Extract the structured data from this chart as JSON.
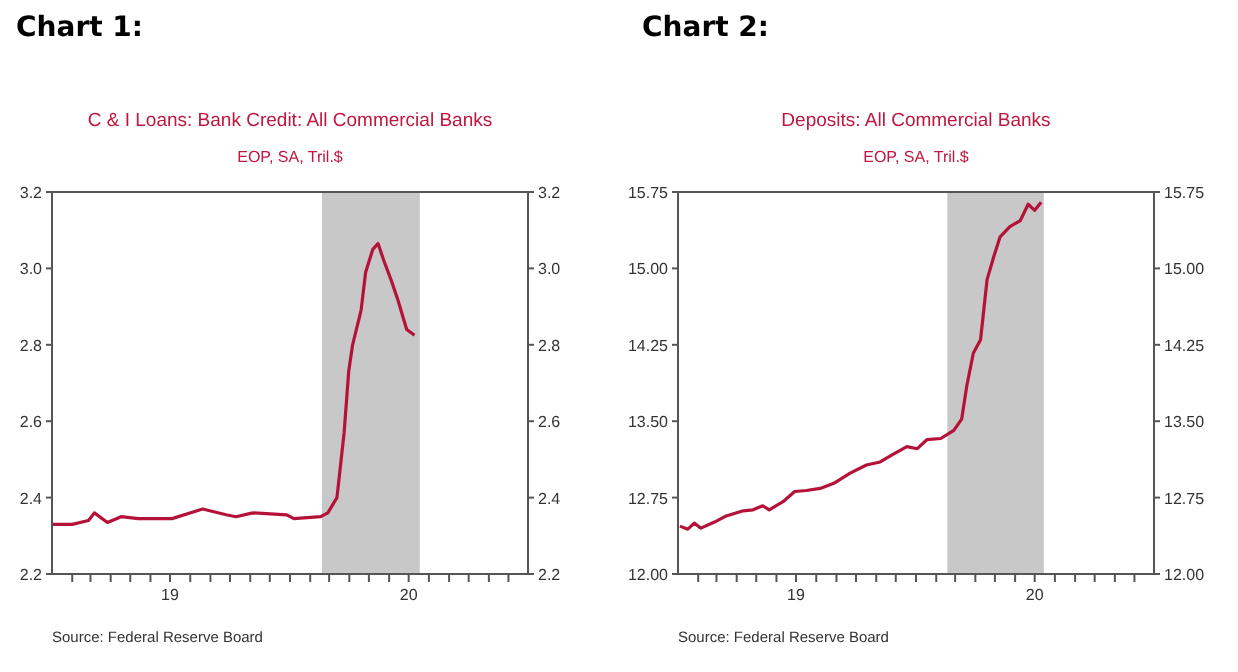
{
  "chart_data": [
    {
      "type": "line",
      "title": "C & I Loans: Bank Credit: All Commercial Banks",
      "subtitle": "EOP, SA, Tril.$",
      "annotations": [
        "Chart 1:",
        "Source:  Federal Reserve Board"
      ],
      "x": [
        "2019-01-01",
        "2019-02-01",
        "2019-02-26",
        "2019-03-07",
        "2019-03-27",
        "2019-04-17",
        "2019-05-13",
        "2019-07-04",
        "2019-08-20",
        "2019-09-25",
        "2019-10-10",
        "2019-11-05",
        "2019-12-27",
        "2020-01-07",
        "2020-02-17",
        "2020-02-28",
        "2020-03-13",
        "2020-03-24",
        "2020-03-31",
        "2020-04-06",
        "2020-04-19",
        "2020-04-26",
        "2020-05-07",
        "2020-05-15",
        "2020-05-24",
        "2020-06-04",
        "2020-06-14",
        "2020-06-28",
        "2020-07-10"
      ],
      "series": [
        {
          "color": "#b5123a",
          "values": [
            2.33,
            2.33,
            2.34,
            2.36,
            2.335,
            2.35,
            2.345,
            2.345,
            2.37,
            2.355,
            2.35,
            2.36,
            2.355,
            2.345,
            2.35,
            2.36,
            2.4,
            2.57,
            2.73,
            2.8,
            2.89,
            2.99,
            3.05,
            3.065,
            3.02,
            2.97,
            2.92,
            2.84,
            2.825
          ]
        }
      ],
      "bands": [
        {
          "axis": "x",
          "from": "2020-02-19",
          "to": "2020-07-18",
          "color": "#c8c8c8"
        }
      ],
      "xlim": [
        "2019-01-01",
        "2020-12-31"
      ],
      "xticks": [
        {
          "value": "2019-02-01",
          "label": null
        },
        {
          "value": "2019-03-01",
          "label": null
        },
        {
          "value": "2019-04-01",
          "label": null
        },
        {
          "value": "2019-05-01",
          "label": null
        },
        {
          "value": "2019-06-01",
          "label": null
        },
        {
          "value": "2019-07-01",
          "label": "19"
        },
        {
          "value": "2019-08-01",
          "label": null
        },
        {
          "value": "2019-09-01",
          "label": null
        },
        {
          "value": "2019-10-01",
          "label": null
        },
        {
          "value": "2019-11-01",
          "label": null
        },
        {
          "value": "2019-12-01",
          "label": null
        },
        {
          "value": "2020-01-01",
          "label": null
        },
        {
          "value": "2020-02-01",
          "label": null
        },
        {
          "value": "2020-03-01",
          "label": null
        },
        {
          "value": "2020-04-01",
          "label": null
        },
        {
          "value": "2020-05-01",
          "label": null
        },
        {
          "value": "2020-06-01",
          "label": null
        },
        {
          "value": "2020-07-01",
          "label": "20"
        },
        {
          "value": "2020-08-01",
          "label": null
        },
        {
          "value": "2020-09-01",
          "label": null
        },
        {
          "value": "2020-10-01",
          "label": null
        },
        {
          "value": "2020-11-01",
          "label": null
        },
        {
          "value": "2020-12-01",
          "label": null
        }
      ],
      "ylim": [
        2.2,
        3.2
      ],
      "yticks": [
        {
          "value": 2.2,
          "label": "2.2"
        },
        {
          "value": 2.4,
          "label": "2.4"
        },
        {
          "value": 2.6,
          "label": "2.6"
        },
        {
          "value": 2.8,
          "label": "2.8"
        },
        {
          "value": 3,
          "label": "3.0"
        },
        {
          "value": 3.2,
          "label": "3.2"
        }
      ],
      "y2lim": [
        2.2,
        3.2
      ],
      "y2ticks": [
        {
          "value": 2.2,
          "label": "2.2"
        },
        {
          "value": 2.4,
          "label": "2.4"
        },
        {
          "value": 2.6,
          "label": "2.6"
        },
        {
          "value": 2.8,
          "label": "2.8"
        },
        {
          "value": 3,
          "label": "3.0"
        },
        {
          "value": 3.2,
          "label": "3.2"
        }
      ],
      "grid": false
    },
    {
      "type": "line",
      "title": "Deposits: All Commercial Banks",
      "subtitle": "EOP, SA, Tril.$",
      "annotations": [
        "Chart 2:",
        "Source:  Federal Reserve Board"
      ],
      "x": [
        "2019-01-04",
        "2019-01-16",
        "2019-01-26",
        "2019-02-05",
        "2019-02-26",
        "2019-03-16",
        "2019-04-11",
        "2019-04-26",
        "2019-05-11",
        "2019-05-21",
        "2019-06-11",
        "2019-06-29",
        "2019-07-17",
        "2019-08-07",
        "2019-08-28",
        "2019-09-22",
        "2019-10-17",
        "2019-11-07",
        "2019-11-28",
        "2019-12-18",
        "2020-01-03",
        "2020-01-18",
        "2020-02-08",
        "2020-02-28",
        "2020-03-11",
        "2020-03-19",
        "2020-03-29",
        "2020-04-09",
        "2020-04-19",
        "2020-04-29",
        "2020-05-09",
        "2020-05-24",
        "2020-06-09",
        "2020-06-21",
        "2020-07-01",
        "2020-07-11"
      ],
      "series": [
        {
          "color": "#b5123a",
          "values": [
            12.47,
            12.44,
            12.5,
            12.45,
            12.51,
            12.57,
            12.62,
            12.63,
            12.67,
            12.63,
            12.71,
            12.81,
            12.82,
            12.84,
            12.89,
            12.99,
            13.07,
            13.1,
            13.18,
            13.25,
            13.23,
            13.32,
            13.33,
            13.41,
            13.52,
            13.85,
            14.17,
            14.3,
            14.89,
            15.11,
            15.31,
            15.41,
            15.47,
            15.63,
            15.57,
            15.65
          ]
        }
      ],
      "bands": [
        {
          "axis": "x",
          "from": "2020-02-18",
          "to": "2020-07-15",
          "color": "#c8c8c8"
        }
      ],
      "xlim": [
        "2019-01-01",
        "2020-12-31"
      ],
      "xticks": [
        {
          "value": "2019-02-01",
          "label": null
        },
        {
          "value": "2019-03-01",
          "label": null
        },
        {
          "value": "2019-04-01",
          "label": null
        },
        {
          "value": "2019-05-01",
          "label": null
        },
        {
          "value": "2019-06-01",
          "label": null
        },
        {
          "value": "2019-07-01",
          "label": "19"
        },
        {
          "value": "2019-08-01",
          "label": null
        },
        {
          "value": "2019-09-01",
          "label": null
        },
        {
          "value": "2019-10-01",
          "label": null
        },
        {
          "value": "2019-11-01",
          "label": null
        },
        {
          "value": "2019-12-01",
          "label": null
        },
        {
          "value": "2020-01-01",
          "label": null
        },
        {
          "value": "2020-02-01",
          "label": null
        },
        {
          "value": "2020-03-01",
          "label": null
        },
        {
          "value": "2020-04-01",
          "label": null
        },
        {
          "value": "2020-05-01",
          "label": null
        },
        {
          "value": "2020-06-01",
          "label": null
        },
        {
          "value": "2020-07-01",
          "label": "20"
        },
        {
          "value": "2020-08-01",
          "label": null
        },
        {
          "value": "2020-09-01",
          "label": null
        },
        {
          "value": "2020-10-01",
          "label": null
        },
        {
          "value": "2020-11-01",
          "label": null
        },
        {
          "value": "2020-12-01",
          "label": null
        }
      ],
      "ylim": [
        12,
        15.75
      ],
      "yticks": [
        {
          "value": 12,
          "label": "12.00"
        },
        {
          "value": 12.75,
          "label": "12.75"
        },
        {
          "value": 13.5,
          "label": "13.50"
        },
        {
          "value": 14.25,
          "label": "14.25"
        },
        {
          "value": 15,
          "label": "15.00"
        },
        {
          "value": 15.75,
          "label": "15.75"
        }
      ],
      "y2lim": [
        12,
        15.75
      ],
      "y2ticks": [
        {
          "value": 12,
          "label": "12.00"
        },
        {
          "value": 12.75,
          "label": "12.75"
        },
        {
          "value": 13.5,
          "label": "13.50"
        },
        {
          "value": 14.25,
          "label": "14.25"
        },
        {
          "value": 15,
          "label": "15.00"
        },
        {
          "value": 15.75,
          "label": "15.75"
        }
      ],
      "grid": false
    }
  ]
}
